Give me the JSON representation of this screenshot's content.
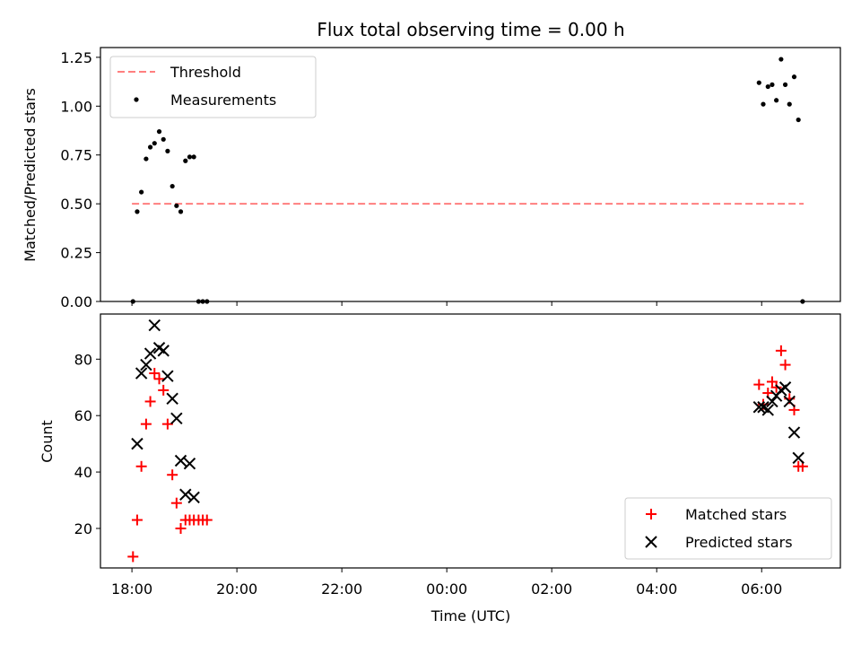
{
  "chart_data": {
    "type": "scatter",
    "title": "Flux total observing time = 0.00 h",
    "x_axis": {
      "label": "Time (UTC)",
      "type": "time_hours",
      "range": [
        17.4,
        31.5
      ],
      "ticks": [
        {
          "value": 18,
          "label": "18:00"
        },
        {
          "value": 20,
          "label": "20:00"
        },
        {
          "value": 22,
          "label": "22:00"
        },
        {
          "value": 24,
          "label": "00:00"
        },
        {
          "value": 26,
          "label": "02:00"
        },
        {
          "value": 28,
          "label": "04:00"
        },
        {
          "value": 30,
          "label": "06:00"
        }
      ]
    },
    "panels": [
      {
        "ylabel": "Matched/Predicted stars",
        "ylim": [
          0,
          1.3
        ],
        "yticks": [
          "0.00",
          "0.25",
          "0.50",
          "0.75",
          "1.00",
          "1.25"
        ],
        "legend_position": "top-left",
        "series": [
          {
            "name": "Threshold",
            "type": "line",
            "style": "dashed",
            "color": "#ff7f7f",
            "x": [
              18.0,
              30.8
            ],
            "y": [
              0.5,
              0.5
            ]
          },
          {
            "name": "Measurements",
            "type": "scatter",
            "marker": "dot",
            "color": "#000000",
            "x": [
              18.02,
              18.1,
              18.18,
              18.27,
              18.35,
              18.43,
              18.52,
              18.6,
              18.68,
              18.77,
              18.85,
              18.93,
              19.02,
              19.1,
              19.18,
              19.27,
              19.35,
              19.43,
              29.95,
              30.03,
              30.12,
              30.2,
              30.28,
              30.37,
              30.45,
              30.53,
              30.62,
              30.7,
              30.78
            ],
            "y": [
              0.0,
              0.46,
              0.56,
              0.73,
              0.79,
              0.81,
              0.87,
              0.83,
              0.77,
              0.59,
              0.49,
              0.46,
              0.72,
              0.74,
              0.74,
              0.0,
              0.0,
              0.0,
              1.12,
              1.01,
              1.1,
              1.11,
              1.03,
              1.24,
              1.11,
              1.01,
              1.15,
              0.93,
              0.0
            ]
          }
        ]
      },
      {
        "ylabel": "Count",
        "ylim": [
          6,
          96
        ],
        "yticks": [
          "20",
          "40",
          "60",
          "80"
        ],
        "legend_position": "bottom-right",
        "series": [
          {
            "name": "Matched stars",
            "type": "scatter",
            "marker": "plus",
            "color": "#ff0000",
            "x": [
              18.02,
              18.1,
              18.18,
              18.27,
              18.35,
              18.43,
              18.52,
              18.6,
              18.68,
              18.77,
              18.85,
              18.93,
              19.02,
              19.1,
              19.18,
              19.27,
              19.35,
              19.43,
              29.95,
              30.03,
              30.12,
              30.2,
              30.28,
              30.37,
              30.45,
              30.53,
              30.62,
              30.7,
              30.78
            ],
            "y": [
              10,
              23,
              42,
              57,
              65,
              75,
              73,
              69,
              57,
              39,
              29,
              20,
              23,
              23,
              23,
              23,
              23,
              23,
              71,
              64,
              68,
              72,
              70,
              83,
              78,
              66,
              62,
              42,
              42
            ]
          },
          {
            "name": "Predicted stars",
            "type": "scatter",
            "marker": "x",
            "color": "#000000",
            "x": [
              18.1,
              18.18,
              18.27,
              18.35,
              18.43,
              18.52,
              18.6,
              18.68,
              18.77,
              18.85,
              18.93,
              19.02,
              19.1,
              19.18,
              29.95,
              30.03,
              30.12,
              30.2,
              30.28,
              30.37,
              30.45,
              30.53,
              30.62,
              30.7
            ],
            "y": [
              50,
              75,
              78,
              82,
              92,
              84,
              83,
              74,
              66,
              59,
              44,
              32,
              43,
              31,
              63,
              63,
              62,
              65,
              67,
              69,
              70,
              65,
              54,
              45
            ]
          }
        ]
      }
    ]
  }
}
